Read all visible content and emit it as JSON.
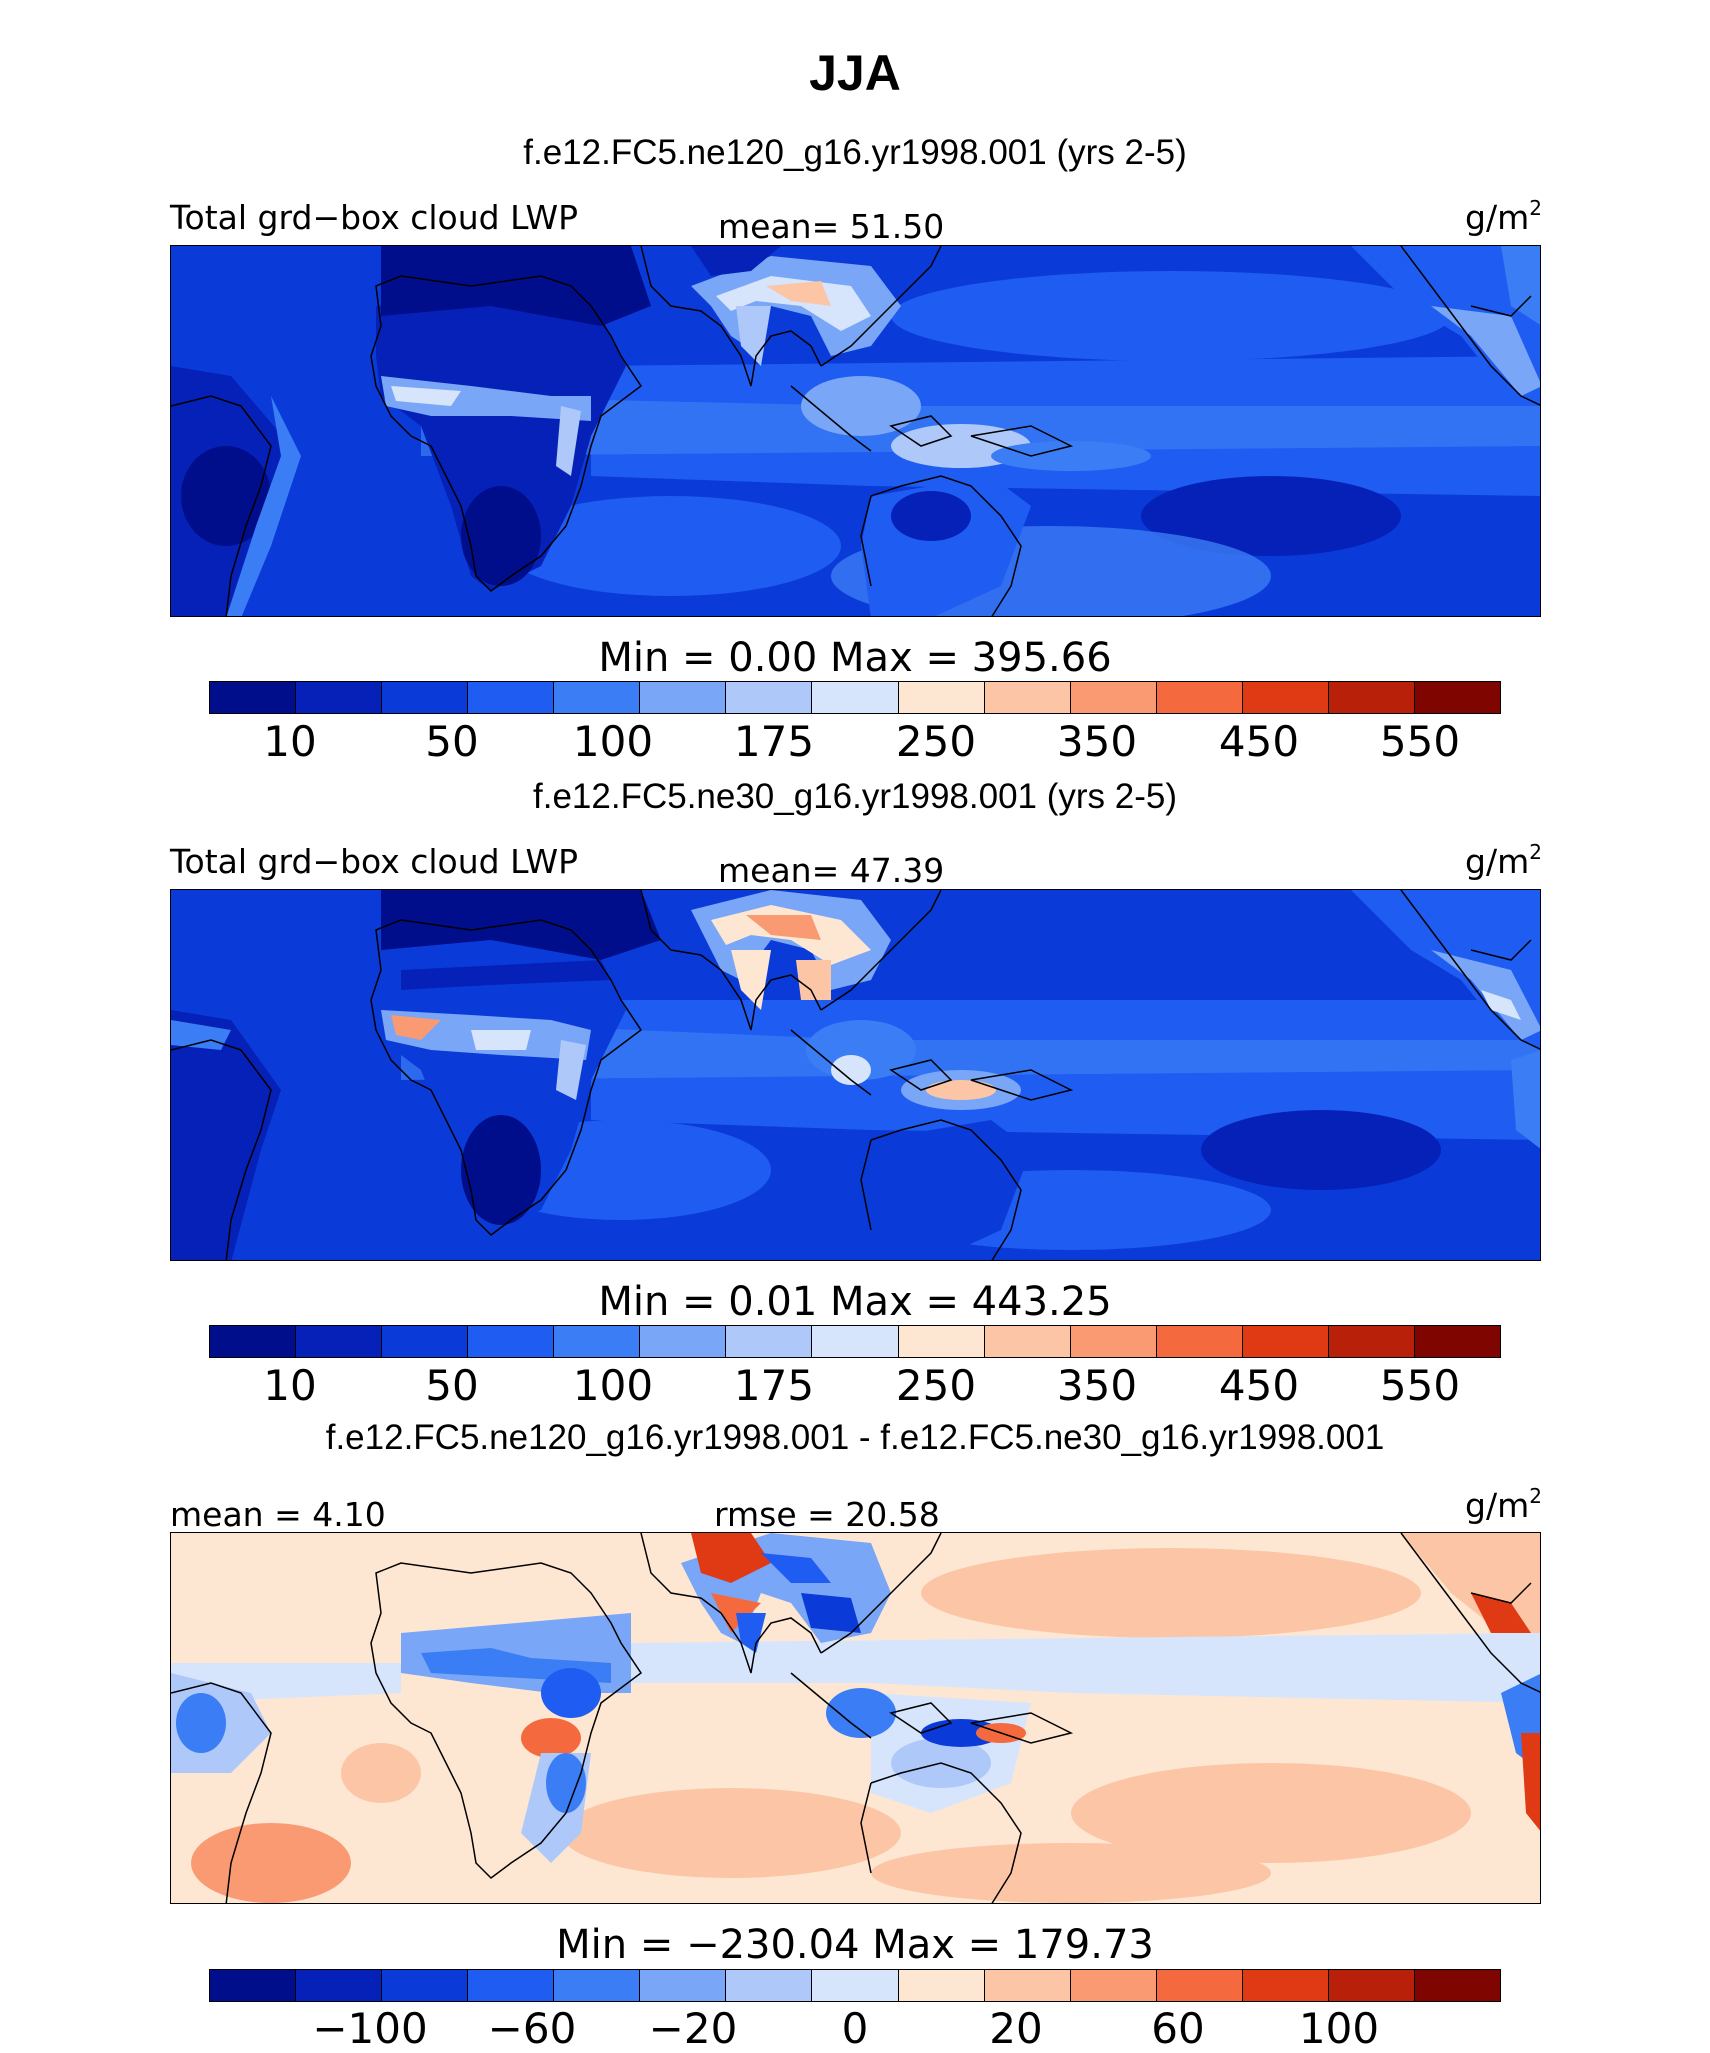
{
  "title": "JJA",
  "colors": {
    "abs_scale": [
      "#000e8c",
      "#0521b8",
      "#0a3bd9",
      "#1f5cf2",
      "#3b7df5",
      "#7aa6f7",
      "#aec8fa",
      "#d6e5fc",
      "#fde7d3",
      "#fcc6a6",
      "#f99a72",
      "#f46a3e",
      "#e03a14",
      "#b8200a",
      "#7f0500"
    ],
    "diff_scale": [
      "#000e8c",
      "#0521b8",
      "#0a3bd9",
      "#1f5cf2",
      "#3b7df5",
      "#7aa6f7",
      "#aec8fa",
      "#d6e5fc",
      "#fde7d3",
      "#fcc6a6",
      "#f99a72",
      "#f46a3e",
      "#e03a14",
      "#b8200a",
      "#7f0500"
    ]
  },
  "panels": [
    {
      "subtitle": "f.e12.FC5.ne120_g16.yr1998.001 (yrs 2-5)",
      "left_label": "Total grd−box cloud LWP",
      "center_label": "mean=  51.50",
      "units": "g/m",
      "units_sup": "2",
      "minmax": "Min =    0.00  Max = 395.66",
      "ticks": [
        "10",
        "50",
        "100",
        "175",
        "250",
        "350",
        "450",
        "550"
      ]
    },
    {
      "subtitle": "f.e12.FC5.ne30_g16.yr1998.001 (yrs 2-5)",
      "left_label": "Total grd−box cloud LWP",
      "center_label": "mean=  47.39",
      "units": "g/m",
      "units_sup": "2",
      "minmax": "Min =    0.01  Max = 443.25",
      "ticks": [
        "10",
        "50",
        "100",
        "175",
        "250",
        "350",
        "450",
        "550"
      ]
    },
    {
      "subtitle": "f.e12.FC5.ne120_g16.yr1998.001 - f.e12.FC5.ne30_g16.yr1998.001",
      "left_label": "mean =   4.10",
      "center_label": "rmse =  20.58",
      "units": "g/m",
      "units_sup": "2",
      "minmax": "Min = −230.04 Max = 179.73",
      "ticks": [
        "−100",
        "−60",
        "−20",
        "0",
        "20",
        "60",
        "100"
      ]
    }
  ]
}
